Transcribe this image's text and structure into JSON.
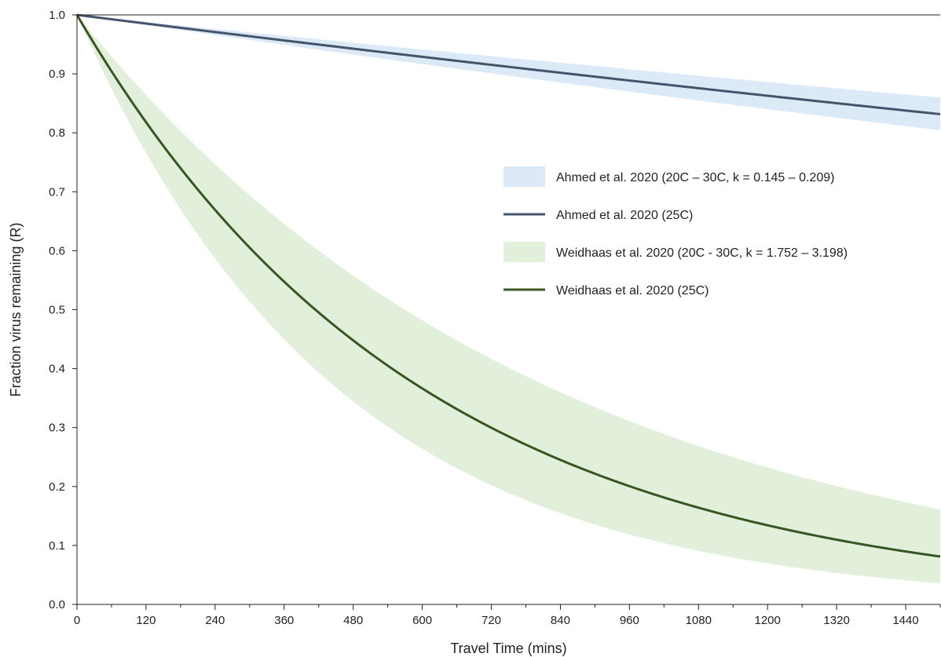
{
  "chart_data": {
    "type": "area",
    "title": "",
    "xlabel": "Travel Time (mins)",
    "ylabel": "Fraction virus remaining (R)",
    "xlim": [
      0,
      1500
    ],
    "ylim": [
      0,
      1.0
    ],
    "xticks": [
      0,
      120,
      240,
      360,
      480,
      600,
      720,
      840,
      960,
      1080,
      1200,
      1320,
      1440
    ],
    "xticks_minor_step": 60,
    "yticks": [
      0.0,
      0.1,
      0.2,
      0.3,
      0.4,
      0.5,
      0.6,
      0.7,
      0.8,
      0.9,
      1.0
    ],
    "ytick_labels": [
      "0.0",
      "0.1",
      "0.2",
      "0.3",
      "0.4",
      "0.5",
      "0.6",
      "0.7",
      "0.8",
      "0.9",
      "1.0"
    ],
    "grid": false,
    "legend_position": "right",
    "model": "R = exp(-k * t / 1440)",
    "series": [
      {
        "name": "Ahmed et al. 2020 (20C – 30C, k = 0.145 – 0.209)",
        "kind": "band",
        "k_low": 0.145,
        "k_high": 0.209,
        "color": "#dce9f6"
      },
      {
        "name": "Ahmed et al. 2020 (25C)",
        "kind": "line",
        "k": 0.177,
        "color": "#44546a"
      },
      {
        "name": "Weidhaas et al. 2020 (20C - 30C, k = 1.752 – 3.198)",
        "kind": "band",
        "k_low": 1.752,
        "k_high": 3.198,
        "color": "#e2efda"
      },
      {
        "name": "Weidhaas et al. 2020 (25C)",
        "kind": "line",
        "k": 2.41,
        "color": "#375623"
      }
    ]
  }
}
